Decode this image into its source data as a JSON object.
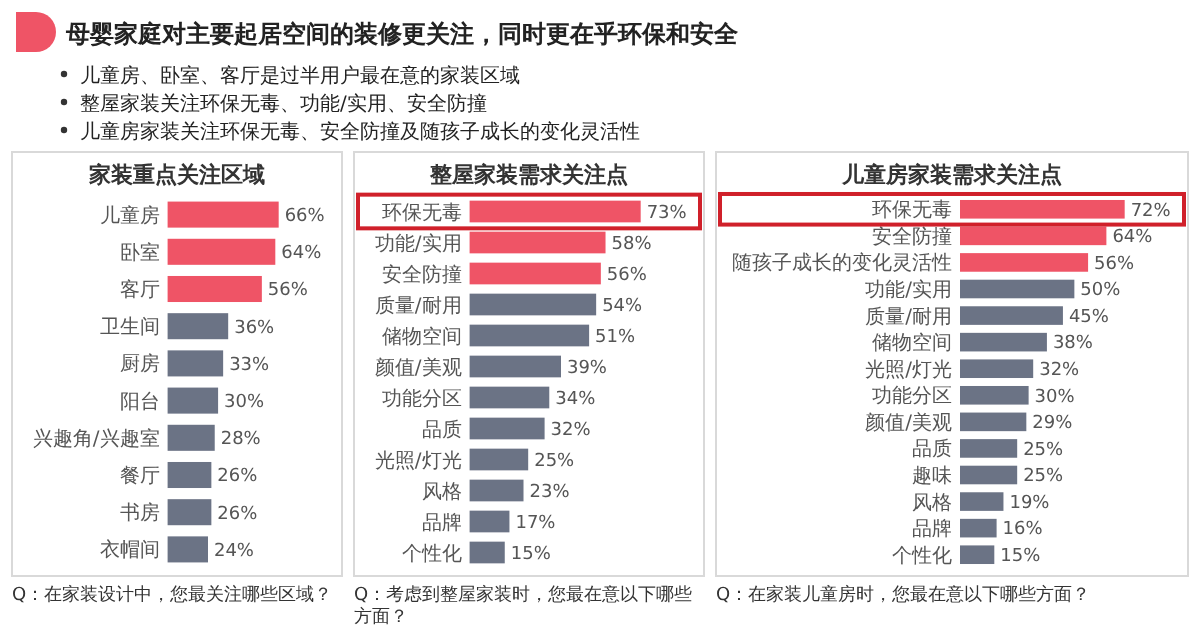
{
  "chart_data": [
    {
      "type": "other",
      "title": "母婴家庭对主要起居空间的装修更关注，同时更在乎环保和安全",
      "annotations": [
        "儿童房、卧室、客厅是过半用户最在意的家装区域",
        "整屋家装关注环保无毒、功能/实用、安全防撞",
        "儿童房家装关注环保无毒、安全防撞及随孩子成长的变化灵活性"
      ]
    },
    {
      "type": "bar",
      "orientation": "horizontal",
      "title": "家装重点关注区域",
      "tick_labels": "y",
      "categories": [
        "儿童房",
        "卧室",
        "客厅",
        "卫生间",
        "厨房",
        "阳台",
        "兴趣角/兴趣室",
        "餐厅",
        "书房",
        "衣帽间"
      ],
      "values": [
        66,
        64,
        56,
        36,
        33,
        30,
        28,
        26,
        26,
        24
      ],
      "value_labels": [
        "66%",
        "64%",
        "56%",
        "36%",
        "33%",
        "30%",
        "28%",
        "26%",
        "26%",
        "24%"
      ],
      "colors": [
        "#ef5466",
        "#ef5466",
        "#ef5466",
        "#6b7385",
        "#6b7385",
        "#6b7385",
        "#6b7385",
        "#6b7385",
        "#6b7385",
        "#6b7385"
      ],
      "annotations": [
        "Q：在家装设计中，您最关注哪些区域？"
      ]
    },
    {
      "type": "bar",
      "orientation": "horizontal",
      "title": "整屋家装需求关注点",
      "tick_labels": "y",
      "categories": [
        "环保无毒",
        "功能/实用",
        "安全防撞",
        "质量/耐用",
        "储物空间",
        "颜值/美观",
        "功能分区",
        "品质",
        "光照/灯光",
        "风格",
        "品牌",
        "个性化"
      ],
      "values": [
        73,
        58,
        56,
        54,
        51,
        39,
        34,
        32,
        25,
        23,
        17,
        15
      ],
      "value_labels": [
        "73%",
        "58%",
        "56%",
        "54%",
        "51%",
        "39%",
        "34%",
        "32%",
        "25%",
        "23%",
        "17%",
        "15%"
      ],
      "colors": [
        "#ef5466",
        "#ef5466",
        "#ef5466",
        "#6b7385",
        "#6b7385",
        "#6b7385",
        "#6b7385",
        "#6b7385",
        "#6b7385",
        "#6b7385",
        "#6b7385",
        "#6b7385"
      ],
      "annotations": [
        "Q：考虑到整屋家装时，您最在意以下哪些方面？"
      ]
    },
    {
      "type": "bar",
      "orientation": "horizontal",
      "title": "儿童房家装需求关注点",
      "tick_labels": "y",
      "categories": [
        "环保无毒",
        "安全防撞",
        "随孩子成长的变化灵活性",
        "功能/实用",
        "质量/耐用",
        "储物空间",
        "光照/灯光",
        "功能分区",
        "颜值/美观",
        "品质",
        "趣味",
        "风格",
        "品牌",
        "个性化"
      ],
      "values": [
        72,
        64,
        56,
        50,
        45,
        38,
        32,
        30,
        29,
        25,
        25,
        19,
        16,
        15
      ],
      "value_labels": [
        "72%",
        "64%",
        "56%",
        "50%",
        "45%",
        "38%",
        "32%",
        "30%",
        "29%",
        "25%",
        "25%",
        "19%",
        "16%",
        "15%"
      ],
      "colors": [
        "#ef5466",
        "#ef5466",
        "#ef5466",
        "#6b7385",
        "#6b7385",
        "#6b7385",
        "#6b7385",
        "#6b7385",
        "#6b7385",
        "#6b7385",
        "#6b7385",
        "#6b7385",
        "#6b7385",
        "#6b7385"
      ],
      "annotations": [
        "Q：在家装儿童房时，您最在意以下哪些方面？"
      ]
    }
  ]
}
